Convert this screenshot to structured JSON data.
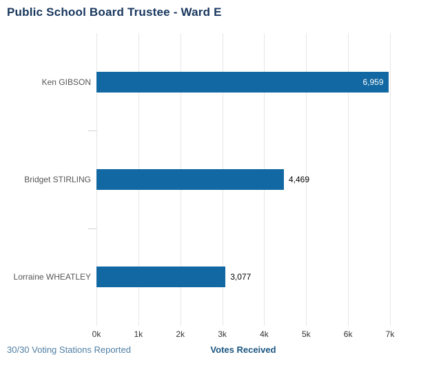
{
  "title": "Public School Board Trustee - Ward E",
  "footer": {
    "stations_reported": "30/30 Voting Stations Reported"
  },
  "chart_data": {
    "type": "bar",
    "orientation": "horizontal",
    "title": "Public School Board Trustee - Ward E",
    "categories": [
      "Ken GIBSON",
      "Bridget STIRLING",
      "Lorraine WHEATLEY"
    ],
    "values": [
      6959,
      4469,
      3077
    ],
    "value_labels": [
      "6,959",
      "4,469",
      "3,077"
    ],
    "xlabel": "Votes Received",
    "ylabel": "",
    "xlim": [
      0,
      7000
    ],
    "x_ticks": [
      0,
      1000,
      2000,
      3000,
      4000,
      5000,
      6000,
      7000
    ],
    "x_tick_labels": [
      "0k",
      "1k",
      "2k",
      "3k",
      "4k",
      "5k",
      "6k",
      "7k"
    ],
    "grid": "vertical-only",
    "legend": "none",
    "colors": {
      "bar": "#1268a2",
      "title": "#17365d",
      "stations_text": "#4f7ea3",
      "xlabel_text": "#1a5580",
      "gridline": "#e6e6e6",
      "axis_tick": "#d0d0d0",
      "x_tick_label": "#333333",
      "category_label": "#555555",
      "value_inside": "#ffffff",
      "value_outside": "#000000"
    }
  }
}
